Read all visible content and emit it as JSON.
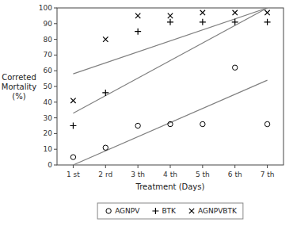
{
  "chart_data": {
    "type": "scatter",
    "title": "",
    "xlabel": "Treatment (Days)",
    "ylabel": "Correted\nMortality\n(%)",
    "xlim": [
      0.5,
      7.5
    ],
    "ylim": [
      0,
      100
    ],
    "yticks": [
      0,
      10,
      20,
      30,
      40,
      50,
      60,
      70,
      80,
      90,
      100
    ],
    "xticks": [
      {
        "value": 1,
        "label": "1 st"
      },
      {
        "value": 2,
        "label": "2 rd"
      },
      {
        "value": 3,
        "label": "3 th"
      },
      {
        "value": 4,
        "label": "4 th"
      },
      {
        "value": 5,
        "label": "5 th"
      },
      {
        "value": 6,
        "label": "6 th"
      },
      {
        "value": 7,
        "label": "7 th"
      }
    ],
    "grid": false,
    "legend": "bottom",
    "series": [
      {
        "name": "AGNPV",
        "marker": "circle",
        "color": "black",
        "x": [
          1,
          2,
          3,
          4,
          5,
          6,
          7
        ],
        "values": [
          5,
          11,
          25,
          26,
          26,
          62,
          26
        ]
      },
      {
        "name": "BTK",
        "marker": "plus",
        "color": "black",
        "x": [
          1,
          2,
          3,
          4,
          5,
          6,
          7
        ],
        "values": [
          25,
          46,
          85,
          91,
          91,
          91,
          91
        ]
      },
      {
        "name": "AGNPVBTK",
        "marker": "cross",
        "color": "black",
        "x": [
          1,
          2,
          3,
          4,
          5,
          6,
          7
        ],
        "values": [
          41,
          80,
          95,
          95,
          97,
          97,
          97
        ]
      },
      {
        "type": "line",
        "color": "gray",
        "x": [
          1,
          7
        ],
        "values": [
          0,
          54
        ]
      },
      {
        "type": "line",
        "color": "gray",
        "x": [
          1,
          7
        ],
        "values": [
          33,
          100
        ]
      },
      {
        "type": "line",
        "color": "gray",
        "x": [
          1,
          7
        ],
        "values": [
          58,
          100
        ]
      }
    ]
  }
}
